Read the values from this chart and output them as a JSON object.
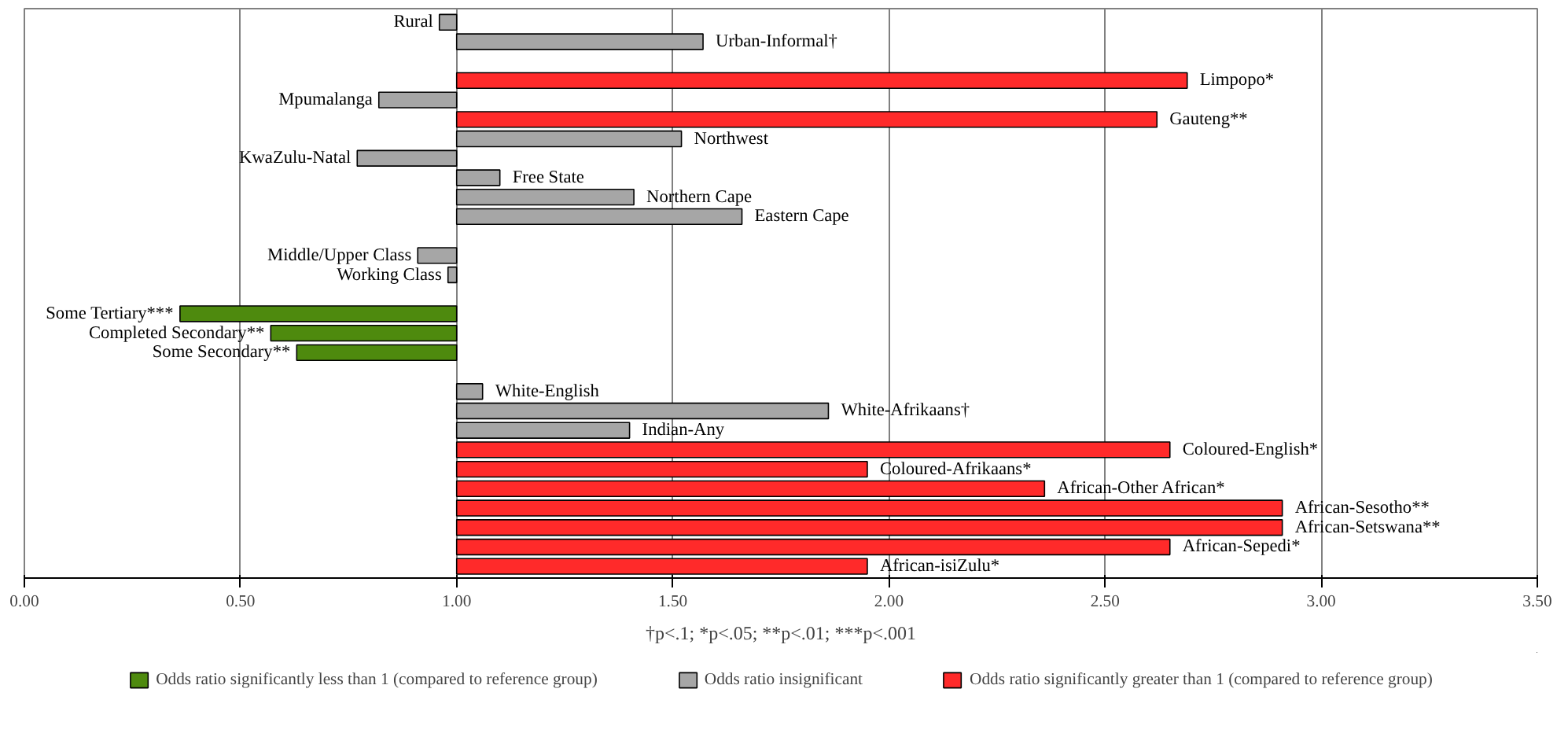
{
  "chart_data": {
    "type": "bar",
    "orientation": "horizontal",
    "categories": [
      "Rural",
      "Urban-Informal†",
      null,
      "Limpopo*",
      "Mpumalanga",
      "Gauteng**",
      "Northwest",
      "KwaZulu-Natal",
      "Free State",
      "Northern Cape",
      "Eastern Cape",
      null,
      "Middle/Upper Class",
      "Working Class",
      null,
      "Some Tertiary***",
      "Completed Secondary**",
      "Some Secondary**",
      null,
      "White-English",
      "White-Afrikaans†",
      "Indian-Any",
      "Coloured-English*",
      "Coloured-Afrikaans*",
      "African-Other African*",
      "African-Sesotho**",
      "African-Setswana**",
      "African-Sepedi*",
      "African-isiZulu*"
    ],
    "series": [
      {
        "name": "Odds ratio significantly less than 1 (compared to reference group)",
        "color": "#4e8a0e",
        "base": [
          null,
          null,
          null,
          null,
          null,
          null,
          null,
          null,
          null,
          null,
          null,
          null,
          null,
          null,
          null,
          1,
          1,
          1,
          null,
          null,
          null,
          null,
          null,
          null,
          null,
          null,
          null,
          null,
          null
        ],
        "values": [
          null,
          null,
          null,
          null,
          null,
          null,
          null,
          null,
          null,
          null,
          null,
          null,
          null,
          null,
          null,
          -0.64,
          -0.43,
          -0.37,
          null,
          null,
          null,
          null,
          null,
          null,
          null,
          null,
          null,
          null,
          null
        ]
      },
      {
        "name": "Odds ratio insignificant",
        "color": "#a6a6a6",
        "base": [
          1,
          1,
          null,
          null,
          1,
          null,
          1,
          1,
          1,
          1,
          1,
          null,
          1,
          1,
          null,
          null,
          null,
          null,
          null,
          1,
          1,
          1,
          null,
          null,
          null,
          null,
          null,
          null,
          null
        ],
        "values": [
          -0.04,
          0.57,
          null,
          null,
          -0.18,
          null,
          0.52,
          -0.23,
          0.1,
          0.41,
          0.66,
          null,
          -0.09,
          -0.02,
          null,
          null,
          null,
          null,
          null,
          0.06,
          0.86,
          0.4,
          null,
          null,
          null,
          null,
          null,
          null,
          null
        ]
      },
      {
        "name": "Odds ratio significantly greater than 1 (compared to reference group)",
        "color": "#ff2a2a",
        "base": [
          null,
          null,
          null,
          1,
          null,
          1,
          null,
          null,
          null,
          null,
          null,
          null,
          null,
          null,
          null,
          null,
          null,
          null,
          null,
          null,
          null,
          null,
          1,
          1,
          1,
          1,
          1,
          1,
          1
        ],
        "values": [
          null,
          null,
          null,
          1.69,
          null,
          1.62,
          null,
          null,
          null,
          null,
          null,
          null,
          null,
          null,
          null,
          null,
          null,
          null,
          null,
          null,
          null,
          null,
          1.65,
          0.95,
          1.36,
          1.91,
          1.91,
          1.65,
          0.95
        ]
      }
    ],
    "xlim": [
      0,
      3.5
    ],
    "xticks": [
      {
        "value": 0,
        "label": "0.00"
      },
      {
        "value": 0.5,
        "label": "0.50"
      },
      {
        "value": 1,
        "label": "1.00"
      },
      {
        "value": 1.5,
        "label": "1.50"
      },
      {
        "value": 2,
        "label": "2.00"
      },
      {
        "value": 2.5,
        "label": "2.50"
      },
      {
        "value": 3,
        "label": "3.00"
      },
      {
        "value": 3.5,
        "label": "3.50"
      }
    ],
    "grid": "x",
    "legend": "bottom",
    "tick_labels": "x",
    "annotations": [
      "†p<.1; *p<.05; **p<.01; ***p<.001"
    ]
  }
}
